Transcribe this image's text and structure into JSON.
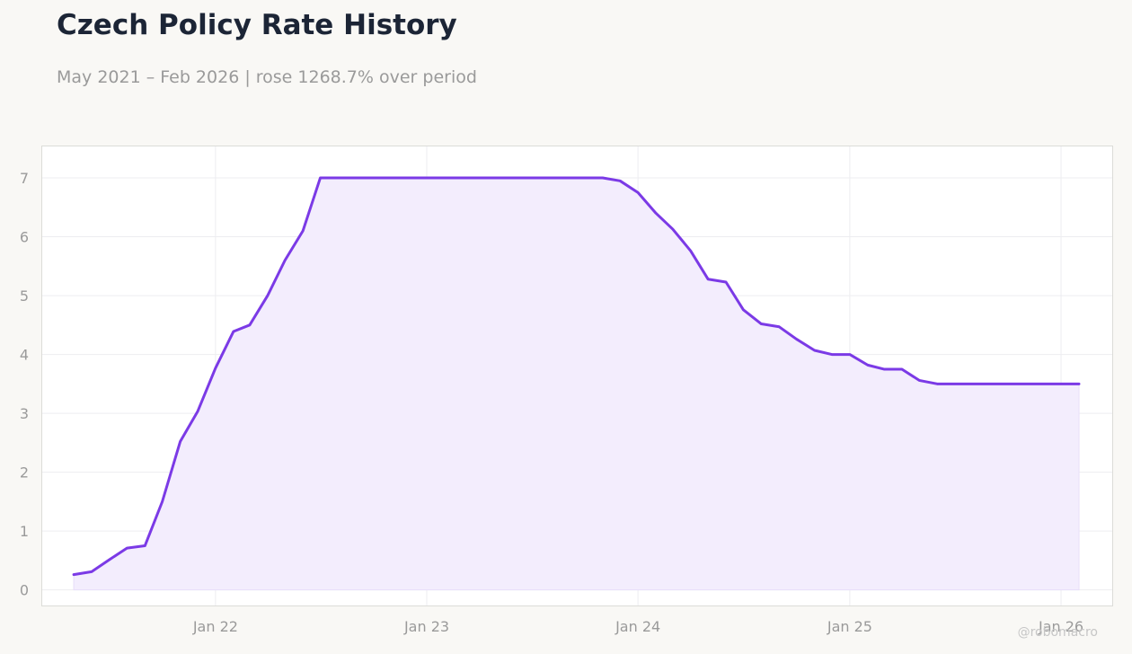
{
  "header": {
    "title": "Czech Policy Rate History",
    "subtitle": "May 2021 – Feb 2026 | rose 1268.7% over period"
  },
  "watermark": "@robomacro",
  "chart_data": {
    "type": "area",
    "title": "Czech Policy Rate History",
    "subtitle": "May 2021 – Feb 2026 | rose 1268.7% over period",
    "xlabel": "",
    "ylabel": "",
    "x_ticks": [
      {
        "date": "2022-01-01",
        "label": "Jan 22"
      },
      {
        "date": "2023-01-01",
        "label": "Jan 23"
      },
      {
        "date": "2024-01-01",
        "label": "Jan 24"
      },
      {
        "date": "2025-01-01",
        "label": "Jan 25"
      },
      {
        "date": "2026-01-01",
        "label": "Jan 26"
      }
    ],
    "y_ticks": [
      0,
      1,
      2,
      3,
      4,
      5,
      6,
      7
    ],
    "xlim": [
      "2021-03-06",
      "2026-04-01"
    ],
    "ylim": [
      -0.28,
      7.55
    ],
    "grid": true,
    "legend": "none",
    "colors": {
      "line": "#7b3ae6",
      "fill": "#f3edfd",
      "grid": "#ededf0",
      "frame": "#dcdcd8",
      "background": "#ffffff"
    },
    "series": [
      {
        "x": [
          "2021-05-01",
          "2021-06-01",
          "2021-07-01",
          "2021-08-01",
          "2021-09-01",
          "2021-10-01",
          "2021-11-01",
          "2021-12-01",
          "2022-01-01",
          "2022-02-01",
          "2022-03-01",
          "2022-04-01",
          "2022-05-01",
          "2022-06-01",
          "2022-07-01",
          "2022-08-01",
          "2022-09-01",
          "2022-10-01",
          "2022-11-01",
          "2022-12-01",
          "2023-01-01",
          "2023-02-01",
          "2023-03-01",
          "2023-04-01",
          "2023-05-01",
          "2023-06-01",
          "2023-07-01",
          "2023-08-01",
          "2023-09-01",
          "2023-10-01",
          "2023-11-01",
          "2023-12-01",
          "2024-01-01",
          "2024-02-01",
          "2024-03-01",
          "2024-04-01",
          "2024-05-01",
          "2024-06-01",
          "2024-07-01",
          "2024-08-01",
          "2024-09-01",
          "2024-10-01",
          "2024-11-01",
          "2024-12-01",
          "2025-01-01",
          "2025-02-01",
          "2025-03-01",
          "2025-04-01",
          "2025-05-01",
          "2025-06-01",
          "2025-07-01",
          "2025-08-01",
          "2025-09-01",
          "2025-10-01",
          "2025-11-01",
          "2025-12-01",
          "2026-01-01",
          "2026-02-01"
        ],
        "y": [
          0.26,
          0.31,
          0.51,
          0.71,
          0.75,
          1.5,
          2.52,
          3.03,
          3.77,
          4.39,
          4.5,
          5.0,
          5.6,
          6.1,
          7.0,
          7.0,
          7.0,
          7.0,
          7.0,
          7.0,
          7.0,
          7.0,
          7.0,
          7.0,
          7.0,
          7.0,
          7.0,
          7.0,
          7.0,
          7.0,
          7.0,
          6.95,
          6.75,
          6.4,
          6.13,
          5.76,
          5.28,
          5.23,
          4.76,
          4.52,
          4.47,
          4.26,
          4.07,
          4.0,
          4.0,
          3.82,
          3.75,
          3.75,
          3.56,
          3.5,
          3.5,
          3.5,
          3.5,
          3.5,
          3.5,
          3.5,
          3.5,
          3.5
        ]
      }
    ]
  }
}
